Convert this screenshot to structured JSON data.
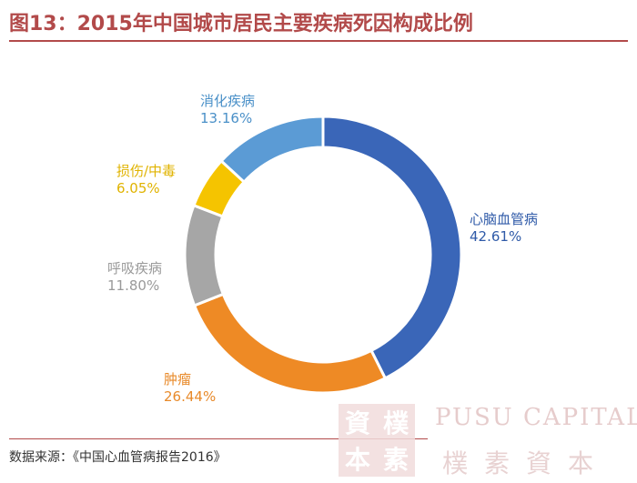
{
  "title": "图13：2015年中国城市居民主要疾病死因构成比例",
  "source": "数据来源：《中国心血管病报告2016》",
  "watermark": {
    "brand_en": "PUSU CAPITAL",
    "brand_cn": "樸素資本",
    "stamp_chars": [
      "資",
      "樸",
      "本",
      "素"
    ]
  },
  "chart_data": {
    "type": "pie",
    "donut": true,
    "title": "图13：2015年中国城市居民主要疾病死因构成比例",
    "legend": "none",
    "slices": [
      {
        "label": "心脑血管病",
        "value": 42.61,
        "display": "42.61%",
        "color": "#3a66b8"
      },
      {
        "label": "肿瘤",
        "value": 26.44,
        "display": "26.44%",
        "color": "#ee8a25"
      },
      {
        "label": "呼吸疾病",
        "value": 11.8,
        "display": "11.80%",
        "color": "#a6a6a6"
      },
      {
        "label": "损伤/中毒",
        "value": 6.05,
        "display": "6.05%",
        "color": "#f5c400"
      },
      {
        "label": "消化疾病",
        "value": 13.16,
        "display": "13.16%",
        "color": "#5b9bd5"
      }
    ]
  }
}
